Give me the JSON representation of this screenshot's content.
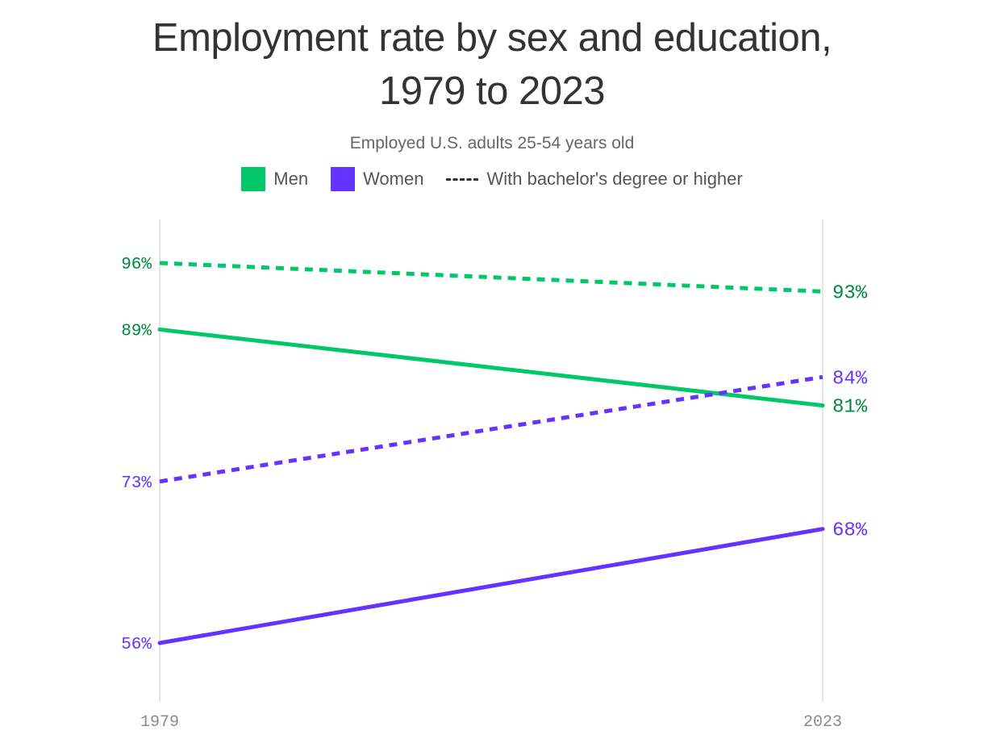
{
  "chart_data": {
    "type": "line",
    "title_line1": "Employment rate by sex and education,",
    "title_line2": "1979 to 2023",
    "subtitle": "Employed U.S. adults 25-54 years old",
    "legend": {
      "men": "Men",
      "women": "Women",
      "dashed": "With bachelor's degree or higher"
    },
    "colors": {
      "men": "#00c767",
      "women": "#6533ff",
      "men_text": "#008a3e",
      "women_text": "#6533ff",
      "grid": "#dddddd"
    },
    "x": [
      1979,
      2023
    ],
    "x_tick_labels": [
      "1979",
      "2023"
    ],
    "ylim": [
      50,
      100
    ],
    "series": [
      {
        "key": "men_bachelor",
        "group": "men",
        "dashed": true,
        "values": [
          96,
          93
        ],
        "labels": [
          "96%",
          "93%"
        ]
      },
      {
        "key": "men_all",
        "group": "men",
        "dashed": false,
        "values": [
          89,
          81
        ],
        "labels": [
          "89%",
          "81%"
        ]
      },
      {
        "key": "women_bachelor",
        "group": "women",
        "dashed": true,
        "values": [
          73,
          84
        ],
        "labels": [
          "73%",
          "84%"
        ]
      },
      {
        "key": "women_all",
        "group": "women",
        "dashed": false,
        "values": [
          56,
          68
        ],
        "labels": [
          "56%",
          "68%"
        ]
      }
    ]
  }
}
